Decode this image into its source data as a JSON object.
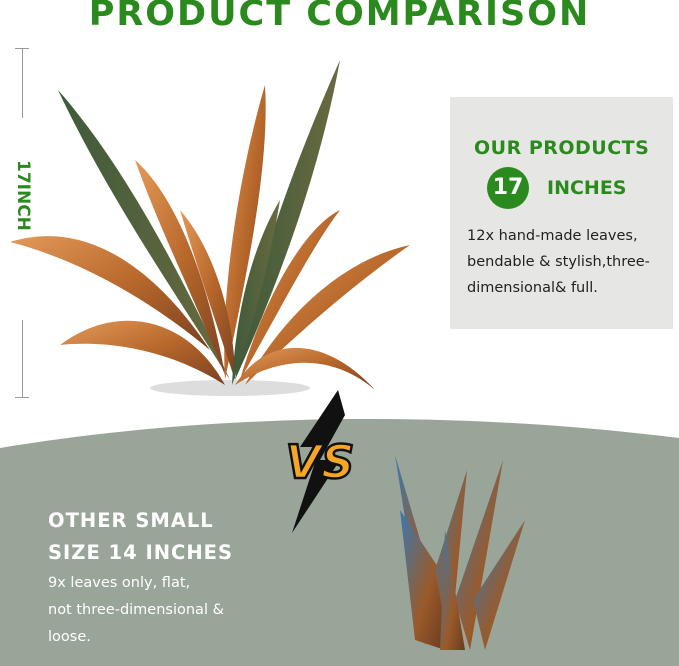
{
  "title": "PRODUCT COMPARISON",
  "height_label": "17INCH",
  "ours": {
    "heading": "OUR PRODUCTS",
    "size_number": "17",
    "size_unit": "INCHES",
    "description": "12x hand-made leaves, bendable & stylish,three-dimensional& full."
  },
  "versus": "VS",
  "other": {
    "heading_line1": "OTHER SMALL",
    "heading_line2": "SIZE 14 INCHES",
    "description_lines": [
      "9x leaves only, flat,",
      "not three-dimensional &",
      "loose."
    ]
  },
  "colors": {
    "accent_green": "#2b8a1e",
    "panel_gray": "#e6e7e4",
    "bottom_sage": "#9aa599",
    "vs_orange": "#f5a623"
  }
}
